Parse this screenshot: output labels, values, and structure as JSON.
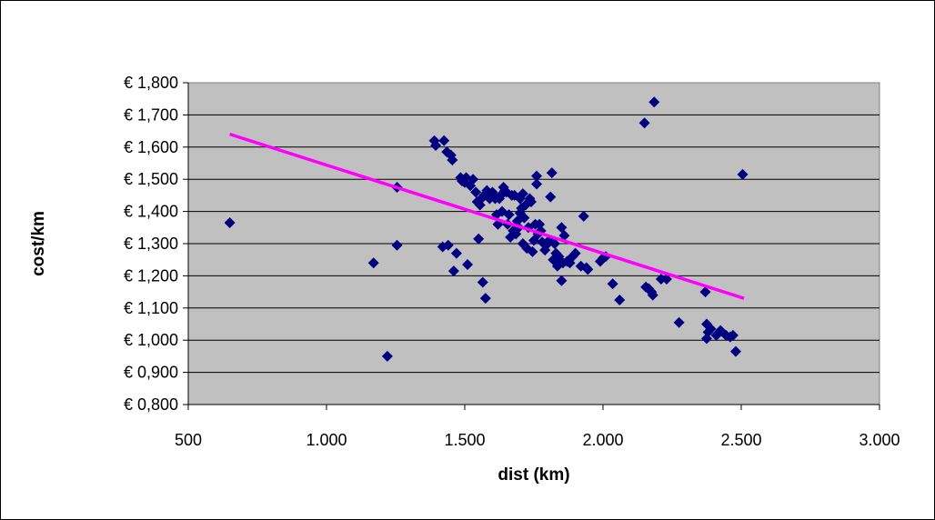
{
  "chart_data": {
    "type": "scatter",
    "title": "",
    "xlabel": "dist (km)",
    "ylabel": "cost/km",
    "xlim": [
      500,
      3000
    ],
    "ylim": [
      0.8,
      1.8
    ],
    "x_ticks": [
      500,
      1000,
      1500,
      2000,
      2500,
      3000
    ],
    "x_tick_labels": [
      "500",
      "1.000",
      "1.500",
      "2.000",
      "2.500",
      "3.000"
    ],
    "y_ticks": [
      0.8,
      0.9,
      1.0,
      1.1,
      1.2,
      1.3,
      1.4,
      1.5,
      1.6,
      1.7,
      1.8
    ],
    "y_tick_labels": [
      "€ 0,800",
      "€ 0,900",
      "€ 1,000",
      "€ 1,100",
      "€ 1,200",
      "€ 1,300",
      "€ 1,400",
      "€ 1,500",
      "€ 1,600",
      "€ 1,700",
      "€ 1,800"
    ],
    "grid": "horizontal",
    "legend": "none",
    "colors": {
      "plot_background": "#c0c0c0",
      "marker": "#000080",
      "trendline": "#ff00ff",
      "gridline": "#000000"
    },
    "series": [
      {
        "marker": "diamond",
        "x": [
          650,
          1170,
          1220,
          1255,
          1255,
          1390,
          1395,
          1420,
          1425,
          1435,
          1440,
          1450,
          1455,
          1460,
          1470,
          1485,
          1490,
          1500,
          1505,
          1510,
          1520,
          1530,
          1540,
          1545,
          1550,
          1555,
          1560,
          1565,
          1570,
          1575,
          1580,
          1590,
          1600,
          1605,
          1610,
          1615,
          1620,
          1625,
          1630,
          1635,
          1640,
          1645,
          1650,
          1655,
          1660,
          1665,
          1670,
          1675,
          1680,
          1685,
          1690,
          1695,
          1700,
          1700,
          1705,
          1710,
          1710,
          1715,
          1720,
          1725,
          1730,
          1735,
          1740,
          1745,
          1750,
          1755,
          1760,
          1760,
          1765,
          1770,
          1775,
          1780,
          1790,
          1800,
          1805,
          1810,
          1815,
          1820,
          1825,
          1830,
          1835,
          1840,
          1845,
          1850,
          1850,
          1855,
          1860,
          1870,
          1880,
          1890,
          1900,
          1920,
          1930,
          1940,
          1945,
          1990,
          2000,
          2010,
          2035,
          2060,
          2150,
          2155,
          2165,
          2175,
          2180,
          2185,
          2210,
          2230,
          2275,
          2370,
          2375,
          2375,
          2380,
          2390,
          2410,
          2420,
          2425,
          2445,
          2460,
          2470,
          2480,
          2505
        ],
        "y": [
          1.365,
          1.24,
          0.95,
          1.475,
          1.295,
          1.62,
          1.605,
          1.29,
          1.62,
          1.585,
          1.295,
          1.575,
          1.56,
          1.215,
          1.27,
          1.505,
          1.495,
          1.49,
          1.505,
          1.235,
          1.48,
          1.5,
          1.46,
          1.43,
          1.315,
          1.42,
          1.44,
          1.18,
          1.45,
          1.13,
          1.465,
          1.44,
          1.46,
          1.45,
          1.44,
          1.39,
          1.36,
          1.44,
          1.45,
          1.4,
          1.475,
          1.465,
          1.46,
          1.36,
          1.39,
          1.32,
          1.45,
          1.34,
          1.45,
          1.33,
          1.37,
          1.35,
          1.44,
          1.395,
          1.41,
          1.455,
          1.3,
          1.38,
          1.42,
          1.285,
          1.35,
          1.44,
          1.43,
          1.275,
          1.31,
          1.36,
          1.51,
          1.485,
          1.33,
          1.36,
          1.34,
          1.305,
          1.28,
          1.3,
          1.31,
          1.445,
          1.52,
          1.25,
          1.3,
          1.27,
          1.23,
          1.26,
          1.24,
          1.35,
          1.185,
          1.24,
          1.325,
          1.245,
          1.24,
          1.26,
          1.27,
          1.23,
          1.385,
          1.225,
          1.22,
          1.245,
          1.255,
          1.26,
          1.175,
          1.125,
          1.675,
          1.165,
          1.16,
          1.15,
          1.14,
          1.74,
          1.19,
          1.19,
          1.055,
          1.15,
          1.05,
          1.005,
          1.025,
          1.035,
          1.015,
          1.025,
          1.03,
          1.015,
          1.01,
          1.015,
          0.965,
          1.515
        ]
      }
    ],
    "trendline": {
      "x": [
        650,
        2510
      ],
      "y": [
        1.64,
        1.13
      ]
    }
  }
}
